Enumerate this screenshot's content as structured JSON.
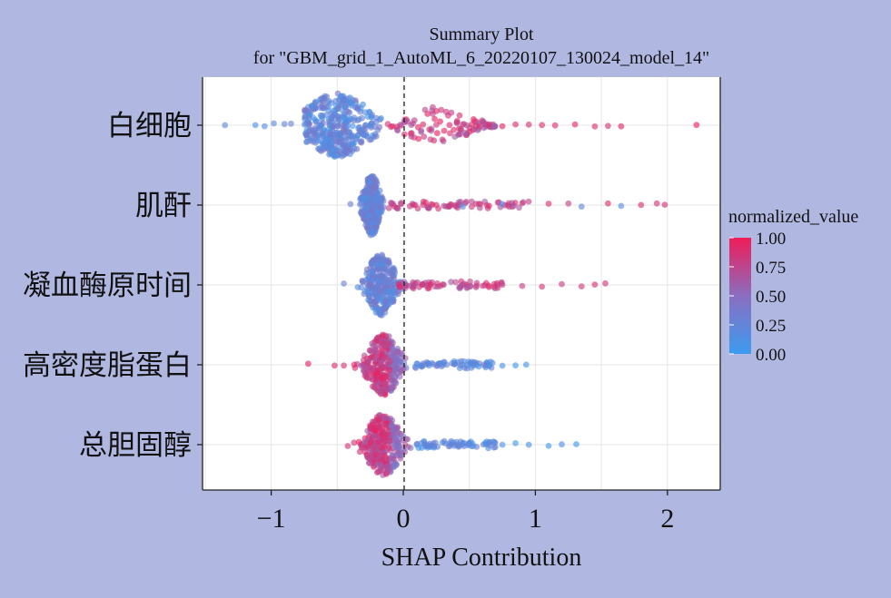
{
  "chart_data": {
    "type": "scatter",
    "subtype": "beeswarm",
    "title": "Summary Plot",
    "subtitle": "for \"GBM_grid_1_AutoML_6_20220107_130024_model_14\"",
    "xlabel": "SHAP Contribution",
    "ylabel": "",
    "xlim": [
      -1.52,
      2.4
    ],
    "x_ticks": [
      -1,
      0,
      1,
      2
    ],
    "x_tick_labels": [
      "−1",
      "0",
      "1",
      "2"
    ],
    "grid": true,
    "zero_line": "dashed",
    "legend": {
      "title": "normalized_value",
      "position": "right",
      "ticks": [
        "1.00",
        "0.75",
        "0.50",
        "0.25",
        "0.00"
      ],
      "min": 0,
      "max": 1,
      "colors": {
        "low": "#3b9bef",
        "mid": "#8a6ec0",
        "high": "#ef1c58"
      }
    },
    "features": [
      {
        "name": "白细胞",
        "core_range": [
          -0.7,
          0.1
        ],
        "center": -0.5,
        "spread": 0.32,
        "points": [
          {
            "x": -1.35,
            "v": 0.2
          },
          {
            "x": -1.12,
            "v": 0.1
          },
          {
            "x": -1.05,
            "v": 0.15
          },
          {
            "x": -0.98,
            "v": 0.2
          },
          {
            "x": -0.9,
            "v": 0.25
          },
          {
            "x": -0.85,
            "v": 0.3
          },
          {
            "x": 0.15,
            "v": 0.9
          },
          {
            "x": 0.25,
            "v": 0.85
          },
          {
            "x": 0.35,
            "v": 0.9
          },
          {
            "x": 0.45,
            "v": 0.8
          },
          {
            "x": 0.55,
            "v": 0.85
          },
          {
            "x": 0.65,
            "v": 0.9
          },
          {
            "x": 0.75,
            "v": 0.95
          },
          {
            "x": 0.85,
            "v": 0.9
          },
          {
            "x": 0.95,
            "v": 0.85
          },
          {
            "x": 1.05,
            "v": 0.9
          },
          {
            "x": 1.15,
            "v": 0.9
          },
          {
            "x": 1.3,
            "v": 0.95
          },
          {
            "x": 1.45,
            "v": 0.9
          },
          {
            "x": 1.55,
            "v": 0.85
          },
          {
            "x": 1.65,
            "v": 0.95
          },
          {
            "x": 2.22,
            "v": 1.0
          }
        ]
      },
      {
        "name": "肌酐",
        "core_range": [
          -0.28,
          -0.12
        ],
        "center": -0.24,
        "spread": 0.08,
        "points": [
          {
            "x": -0.4,
            "v": 0.3
          },
          {
            "x": 0.05,
            "v": 0.8
          },
          {
            "x": 0.15,
            "v": 0.85
          },
          {
            "x": 0.25,
            "v": 0.9
          },
          {
            "x": 0.35,
            "v": 0.8
          },
          {
            "x": 0.45,
            "v": 0.2
          },
          {
            "x": 0.55,
            "v": 0.85
          },
          {
            "x": 0.65,
            "v": 0.9
          },
          {
            "x": 0.75,
            "v": 0.15
          },
          {
            "x": 0.9,
            "v": 0.85
          },
          {
            "x": 1.1,
            "v": 0.9
          },
          {
            "x": 1.25,
            "v": 0.8
          },
          {
            "x": 1.35,
            "v": 0.25
          },
          {
            "x": 1.55,
            "v": 0.9
          },
          {
            "x": 1.65,
            "v": 0.2
          },
          {
            "x": 1.8,
            "v": 0.9
          },
          {
            "x": 1.92,
            "v": 0.85
          },
          {
            "x": 1.98,
            "v": 0.9
          }
        ]
      },
      {
        "name": "凝血酶原时间",
        "core_range": [
          -0.35,
          -0.05
        ],
        "center": -0.17,
        "spread": 0.14,
        "points": [
          {
            "x": -0.45,
            "v": 0.3
          },
          {
            "x": 0.05,
            "v": 0.7
          },
          {
            "x": 0.15,
            "v": 0.75
          },
          {
            "x": 0.3,
            "v": 0.8
          },
          {
            "x": 0.45,
            "v": 0.7
          },
          {
            "x": 0.6,
            "v": 0.8
          },
          {
            "x": 0.75,
            "v": 0.75
          },
          {
            "x": 0.9,
            "v": 0.8
          },
          {
            "x": 1.05,
            "v": 0.85
          },
          {
            "x": 1.2,
            "v": 0.8
          },
          {
            "x": 1.35,
            "v": 0.85
          },
          {
            "x": 1.45,
            "v": 0.9
          },
          {
            "x": 1.53,
            "v": 0.85
          }
        ]
      },
      {
        "name": "高密度脂蛋白",
        "core_range": [
          -0.35,
          0.05
        ],
        "center": -0.15,
        "spread": 0.16,
        "points": [
          {
            "x": -0.72,
            "v": 0.95
          },
          {
            "x": -0.52,
            "v": 0.9
          },
          {
            "x": -0.45,
            "v": 0.85
          },
          {
            "x": 0.15,
            "v": 0.3
          },
          {
            "x": 0.3,
            "v": 0.25
          },
          {
            "x": 0.45,
            "v": 0.2
          },
          {
            "x": 0.55,
            "v": 0.15
          },
          {
            "x": 0.65,
            "v": 0.1
          },
          {
            "x": 0.75,
            "v": 0.1
          },
          {
            "x": 0.85,
            "v": 0.05
          },
          {
            "x": 0.93,
            "v": 0.05
          }
        ]
      },
      {
        "name": "总胆固醇",
        "core_range": [
          -0.35,
          0.1
        ],
        "center": -0.15,
        "spread": 0.17,
        "points": [
          {
            "x": -0.42,
            "v": 0.85
          },
          {
            "x": 0.2,
            "v": 0.3
          },
          {
            "x": 0.35,
            "v": 0.25
          },
          {
            "x": 0.5,
            "v": 0.2
          },
          {
            "x": 0.62,
            "v": 0.1
          },
          {
            "x": 0.75,
            "v": 0.1
          },
          {
            "x": 0.85,
            "v": 0.05
          },
          {
            "x": 0.95,
            "v": 0.1
          },
          {
            "x": 1.1,
            "v": 0.05
          },
          {
            "x": 1.2,
            "v": 0.1
          },
          {
            "x": 1.31,
            "v": 0.05
          }
        ]
      }
    ]
  }
}
